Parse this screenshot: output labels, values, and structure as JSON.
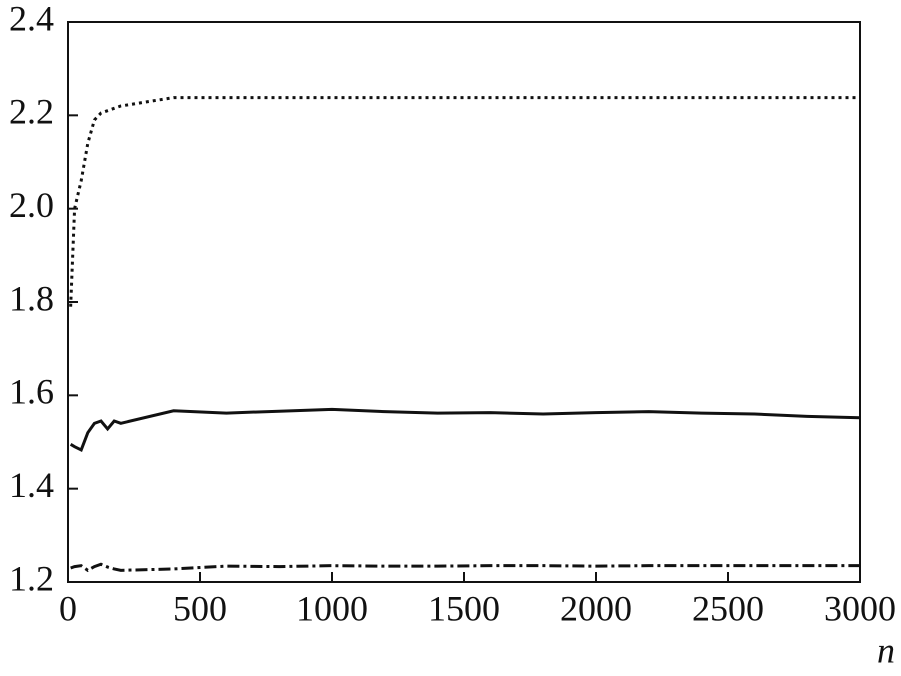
{
  "chart_data": {
    "type": "line",
    "x_label": "n",
    "x": [
      10,
      25,
      50,
      75,
      100,
      125,
      150,
      175,
      200,
      400,
      600,
      800,
      1000,
      1200,
      1400,
      1600,
      1800,
      2000,
      2200,
      2400,
      2600,
      2800,
      3000
    ],
    "series": [
      {
        "color": "#111111",
        "line_style": "dotted",
        "values": [
          1.79,
          2.0,
          2.06,
          2.14,
          2.19,
          2.205,
          2.21,
          2.215,
          2.22,
          2.238,
          2.238,
          2.238,
          2.238,
          2.238,
          2.238,
          2.238,
          2.238,
          2.238,
          2.238,
          2.238,
          2.238,
          2.238,
          2.238
        ]
      },
      {
        "color": "#111111",
        "line_style": "solid",
        "values": [
          1.495,
          1.49,
          1.483,
          1.52,
          1.54,
          1.545,
          1.528,
          1.545,
          1.54,
          1.567,
          1.562,
          1.566,
          1.57,
          1.565,
          1.562,
          1.563,
          1.56,
          1.563,
          1.565,
          1.562,
          1.56,
          1.555,
          1.552
        ]
      },
      {
        "color": "#111111",
        "line_style": "dashdot",
        "values": [
          1.23,
          1.233,
          1.235,
          1.225,
          1.233,
          1.238,
          1.232,
          1.228,
          1.225,
          1.228,
          1.234,
          1.233,
          1.235,
          1.234,
          1.234,
          1.235,
          1.235,
          1.234,
          1.235,
          1.235,
          1.235,
          1.235,
          1.235
        ]
      }
    ],
    "xlim": [
      0,
      3000
    ],
    "xticks": [
      0,
      500,
      1000,
      1500,
      2000,
      2500,
      3000
    ],
    "ylim": [
      1.2,
      2.4
    ],
    "yticks": [
      1.2,
      1.4,
      1.6,
      1.8,
      {
        "value": 2,
        "label": "2.0"
      },
      2.2,
      2.4
    ]
  }
}
